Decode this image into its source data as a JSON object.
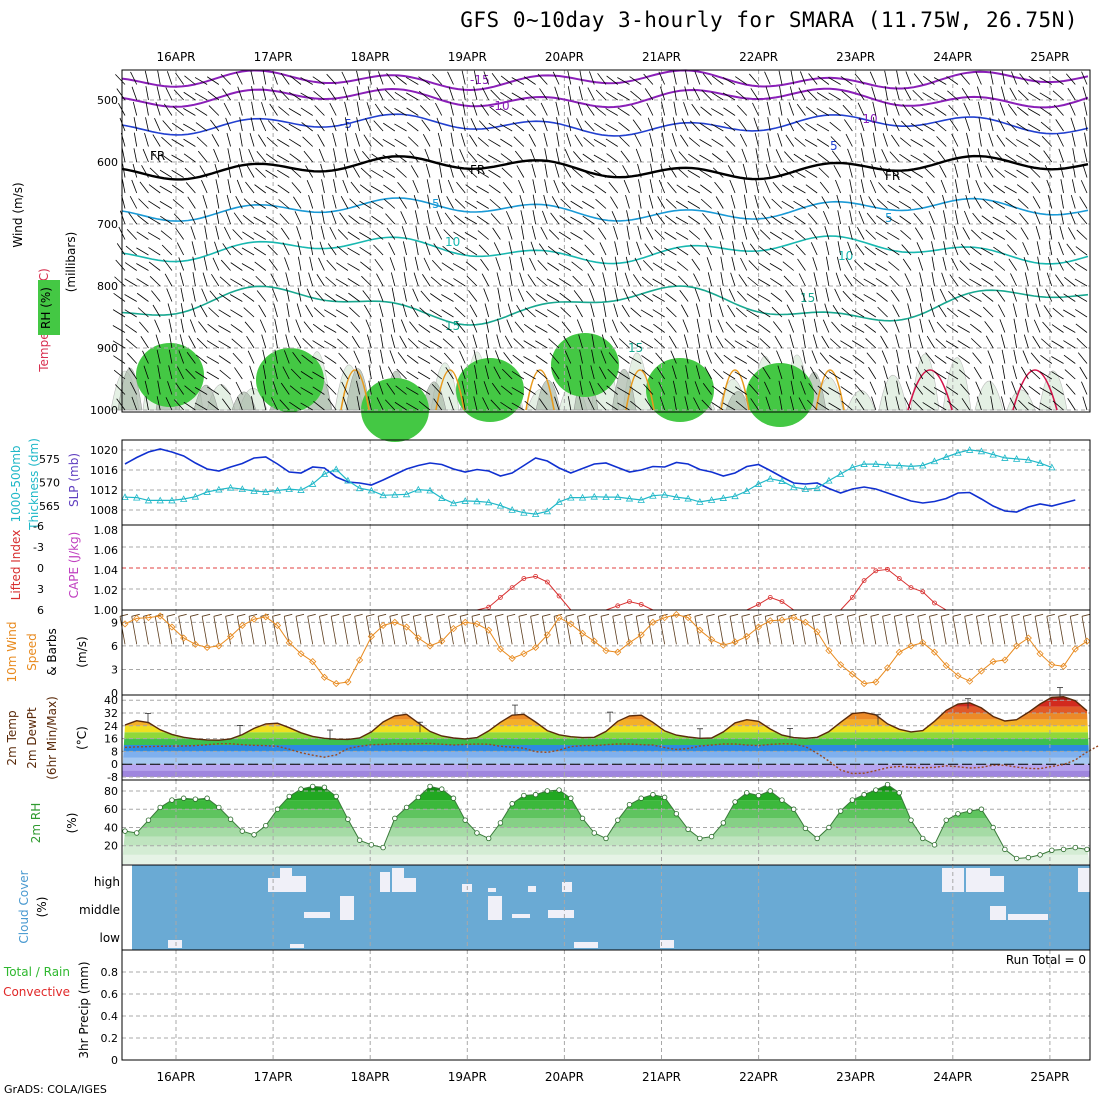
{
  "title": "GFS 0~10day 3-hourly for SMARA (11.75W, 26.75N)",
  "credit": "GrADS: COLA/IGES",
  "dates": [
    "16APR",
    "17APR",
    "18APR",
    "19APR",
    "20APR",
    "21APR",
    "22APR",
    "23APR",
    "24APR",
    "25APR"
  ],
  "chart_data": [
    {
      "type": "heatmap",
      "panel": "upper-air cross section",
      "ylabel_parts": [
        "RH (%)",
        "Temperature (°C)",
        "Wind (m/s)"
      ],
      "ylabel_unit": "(millibars)",
      "ylim": [
        1000,
        450
      ],
      "yticks": [
        500,
        600,
        700,
        800,
        900,
        1000
      ],
      "contour_labels": [
        "-15",
        "-10",
        "-5",
        "FR",
        "5",
        "10",
        "15"
      ],
      "colors": {
        "rh": "#44c844",
        "rh_light": "#e6f3e6",
        "isotherm_cold": "#8a1fb8",
        "isotherm_freezing": "#000000",
        "isotherm_cool": "#1a9ad6",
        "isotherm_warm": "#e89a1e",
        "isotherm_hot": "#d2144a"
      }
    },
    {
      "type": "line",
      "panel": "thickness-slp",
      "ylabel_left": "1000-500mb Thickness (dm)",
      "ylabel_right": "SLP (mb)",
      "yticks_left": [
        565,
        570,
        575
      ],
      "yticks_right": [
        1008,
        1012,
        1016,
        1020
      ],
      "series": [
        {
          "name": "SLP (mb)",
          "color": "#1030d0",
          "values": [
            1017.2,
            1018.5,
            1019.6,
            1020.2,
            1019.6,
            1018.8,
            1017.4,
            1016.2,
            1015.8,
            1016.6,
            1017.3,
            1018.4,
            1018.6,
            1017.2,
            1015.6,
            1015.4,
            1016.6,
            1016.4,
            1014.6,
            1013.6,
            1013.4,
            1013.0,
            1014.0,
            1015.1,
            1016.2,
            1016.9,
            1017.4,
            1017.1,
            1016.2,
            1015.6,
            1016.1,
            1015.8,
            1014.8,
            1015.4,
            1016.9,
            1018.4,
            1017.8,
            1016.4,
            1015.4,
            1016.3,
            1017.2,
            1017.4,
            1016.5,
            1015.6,
            1016.0,
            1016.7,
            1016.6,
            1017.5,
            1017.2,
            1016.1,
            1015.6,
            1014.8,
            1015.4,
            1016.7,
            1017.1,
            1015.9,
            1014.6,
            1013.4,
            1013.2,
            1013.4,
            1012.3,
            1011.4,
            1012.2,
            1012.6,
            1012.2,
            1011.4,
            1010.6,
            1009.8,
            1009.4,
            1009.7,
            1010.3,
            1011.4,
            1011.5,
            1010.2,
            1008.8,
            1007.8,
            1007.6,
            1008.6,
            1009.2,
            1008.8,
            1009.4,
            1010.0
          ]
        },
        {
          "name": "1000-500mb Thickness (dm)",
          "color": "#20b8c8",
          "values": [
            566.9,
            566.8,
            566.2,
            566.2,
            566.2,
            566.5,
            567.0,
            568.0,
            568.5,
            568.9,
            568.6,
            568.2,
            568.0,
            568.3,
            568.6,
            568.4,
            569.7,
            571.8,
            572.8,
            570.4,
            568.8,
            568.3,
            567.3,
            567.4,
            567.5,
            568.5,
            568.3,
            566.7,
            565.6,
            566.1,
            566.0,
            565.8,
            565.1,
            564.2,
            563.6,
            563.3,
            563.9,
            565.9,
            566.8,
            566.8,
            567.0,
            566.9,
            566.9,
            566.6,
            566.3,
            567.2,
            567.4,
            566.9,
            566.6,
            565.9,
            566.3,
            566.7,
            567.1,
            568.2,
            569.7,
            570.8,
            570.3,
            569.0,
            568.6,
            568.8,
            570.4,
            571.8,
            573.2,
            573.9,
            573.9,
            573.7,
            573.6,
            573.4,
            573.6,
            574.5,
            575.4,
            576.3,
            576.9,
            576.6,
            575.9,
            575.2,
            575.0,
            574.8,
            574.1,
            573.2
          ]
        }
      ]
    },
    {
      "type": "line",
      "panel": "instability",
      "ylabel_left": "Lifted Index",
      "ylabel_right": "CAPE (J/kg)",
      "yticks_left": [
        -6,
        -3,
        0,
        3,
        6
      ],
      "yticks_right": [
        1,
        1.02,
        1.04,
        1.06,
        1.08
      ],
      "series": [
        {
          "name": "Lifted Index",
          "color": "#d83030",
          "values": [
            6,
            6,
            6,
            6,
            6,
            6,
            6,
            6,
            6,
            6,
            6,
            6,
            6,
            6,
            6,
            6,
            6,
            6,
            6,
            6,
            6,
            6,
            6,
            6,
            6,
            6,
            6,
            6,
            6,
            6,
            6,
            5.6,
            4.2,
            2.8,
            1.5,
            1.2,
            2.0,
            4.0,
            6,
            6,
            6,
            6,
            5.4,
            4.8,
            5.2,
            6,
            6,
            6,
            6,
            6,
            6,
            6,
            6,
            6,
            5.2,
            4.2,
            4.8,
            6,
            6,
            6,
            6,
            6,
            4.2,
            1.8,
            0.4,
            0.2,
            1.5,
            2.8,
            3.4,
            5.0,
            6,
            6,
            6,
            6,
            6,
            6,
            6,
            6,
            6,
            6,
            6,
            6
          ]
        }
      ]
    },
    {
      "type": "line",
      "panel": "10m wind",
      "ylabel_parts": [
        "10m Wind",
        "Speed",
        "& Barbs"
      ],
      "ylabel_unit": "(m/s)",
      "yticks": [
        0,
        3,
        6,
        9
      ],
      "ylim": [
        0,
        10.5
      ],
      "series": [
        {
          "name": "Speed",
          "color": "#e88a1e",
          "values": [
            8.8,
            9.5,
            9.6,
            9.8,
            8.4,
            7.0,
            6.2,
            5.8,
            6.0,
            7.2,
            8.6,
            9.4,
            9.7,
            8.6,
            6.4,
            5.0,
            4.0,
            2.0,
            1.2,
            1.4,
            4.2,
            7.2,
            8.6,
            9.0,
            8.4,
            7.0,
            6.0,
            6.6,
            8.2,
            9.0,
            8.8,
            8.0,
            5.6,
            4.4,
            5.0,
            5.8,
            7.4,
            9.6,
            8.8,
            7.6,
            6.6,
            5.4,
            5.2,
            6.4,
            7.4,
            9.0,
            9.6,
            10.0,
            9.6,
            8.0,
            6.8,
            6.1,
            6.5,
            7.2,
            8.4,
            9.2,
            9.3,
            9.6,
            9.0,
            7.8,
            5.4,
            3.6,
            2.4,
            1.2,
            1.4,
            3.2,
            5.2,
            6.0,
            6.4,
            5.2,
            3.5,
            2.2,
            1.5,
            2.8,
            4.0,
            4.2,
            6.0,
            7.0,
            5.0,
            3.6,
            3.4,
            5.6,
            6.6,
            7.2,
            4.0,
            3.4,
            3.0,
            2.8,
            2.4,
            1.8
          ]
        }
      ]
    },
    {
      "type": "line",
      "panel": "2m temperature",
      "ylabel_parts": [
        "2m Temp",
        "2m DewPt",
        "(6hr Min/Max)"
      ],
      "ylabel_unit": "(°C)",
      "yticks": [
        -8,
        0,
        8,
        16,
        24,
        32,
        40
      ],
      "ylim": [
        -8,
        42
      ],
      "series": [
        {
          "name": "2m Temp",
          "color": "#5a2a0a",
          "values": [
            24.5,
            27.2,
            26.0,
            21.5,
            18.6,
            16.8,
            15.8,
            15.2,
            15.0,
            15.8,
            18.5,
            22.4,
            25.2,
            25.6,
            22.8,
            19.6,
            17.4,
            16.2,
            15.6,
            15.5,
            16.4,
            20.2,
            26.4,
            30.2,
            31.2,
            25.8,
            20.5,
            17.6,
            16.4,
            15.8,
            16.6,
            20.8,
            26.2,
            30.6,
            31.2,
            26.4,
            21.0,
            18.4,
            17.2,
            16.6,
            16.8,
            20.5,
            26.8,
            30.2,
            30.6,
            26.2,
            20.8,
            18.2,
            17.0,
            16.2,
            16.4,
            20.2,
            25.8,
            27.8,
            26.8,
            22.0,
            18.2,
            16.6,
            16.2,
            16.8,
            20.4,
            26.2,
            31.6,
            32.4,
            30.8,
            25.2,
            21.8,
            20.2,
            21.0,
            26.8,
            33.6,
            37.6,
            38.4,
            35.2,
            29.8,
            27.0,
            27.8,
            32.4,
            37.6,
            41.8,
            42.2,
            39.6,
            33.4,
            28.6,
            25.8,
            23.2,
            22.6,
            22.0
          ]
        },
        {
          "name": "2m DewPt",
          "color": "#9a4a20",
          "values": [
            10.5,
            10.8,
            11.0,
            11.2,
            11.3,
            11.4,
            11.6,
            12.2,
            12.8,
            12.8,
            12.2,
            11.8,
            11.6,
            11.2,
            9.4,
            7.2,
            5.6,
            4.4,
            5.8,
            9.8,
            11.2,
            12.2,
            12.4,
            12.8,
            12.6,
            12.8,
            13.0,
            12.5,
            12.0,
            12.4,
            12.6,
            12.5,
            11.2,
            10.6,
            10.0,
            7.8,
            7.4,
            8.8,
            11.0,
            11.6,
            11.6,
            12.2,
            12.6,
            12.6,
            12.2,
            12.0,
            10.4,
            9.2,
            9.8,
            11.4,
            12.0,
            12.6,
            12.6,
            12.0,
            11.6,
            12.4,
            12.8,
            12.6,
            11.0,
            6.8,
            2.0,
            -3.6,
            -5.8,
            -5.6,
            -4.0,
            -2.2,
            -1.4,
            -2.0,
            -2.2,
            -2.0,
            -1.0,
            -1.6,
            -2.4,
            -2.0,
            -0.6,
            -0.6,
            -1.8,
            -2.6,
            -2.8,
            -1.4,
            -0.2,
            2.6,
            7.6,
            11.6
          ]
        }
      ],
      "bands": [
        {
          "from": -8,
          "to": -4,
          "color": "#9f86de"
        },
        {
          "from": -4,
          "to": 0,
          "color": "#b7a4f0"
        },
        {
          "from": 0,
          "to": 4,
          "color": "#a6c8f2"
        },
        {
          "from": 4,
          "to": 8,
          "color": "#7fb0ee"
        },
        {
          "from": 8,
          "to": 12,
          "color": "#2e8ae0"
        },
        {
          "from": 12,
          "to": 16,
          "color": "#3cc050"
        },
        {
          "from": 16,
          "to": 20,
          "color": "#8fd83a"
        },
        {
          "from": 20,
          "to": 24,
          "color": "#f0e020"
        },
        {
          "from": 24,
          "to": 28,
          "color": "#f4b028"
        },
        {
          "from": 28,
          "to": 32,
          "color": "#ec8a28"
        },
        {
          "from": 32,
          "to": 36,
          "color": "#e05a28"
        },
        {
          "from": 36,
          "to": 40,
          "color": "#d22a1e"
        },
        {
          "from": 40,
          "to": 46,
          "color": "#a81814"
        }
      ]
    },
    {
      "type": "area",
      "panel": "2m RH",
      "ylabel": "2m RH",
      "ylabel_unit": "(%)",
      "yticks": [
        20,
        40,
        60,
        80
      ],
      "ylim": [
        0,
        92
      ],
      "series": [
        {
          "name": "2m RH",
          "color": "#2f9a2f",
          "values": [
            36,
            34,
            48,
            62,
            70,
            72,
            71,
            72,
            62,
            49,
            36,
            32,
            42,
            60,
            74,
            82,
            85,
            84,
            74,
            49,
            26,
            21,
            18,
            50,
            62,
            73,
            85,
            82,
            72,
            48,
            34,
            28,
            45,
            66,
            75,
            76,
            80,
            81,
            72,
            50,
            34,
            28,
            48,
            65,
            72,
            76,
            73,
            55,
            38,
            28,
            30,
            45,
            68,
            78,
            75,
            80,
            70,
            60,
            39,
            28,
            40,
            58,
            70,
            76,
            81,
            87,
            78,
            48,
            28,
            21,
            48,
            55,
            58,
            60,
            40,
            16,
            6,
            7,
            10,
            15,
            16,
            18,
            16,
            14,
            10,
            9,
            8,
            8,
            20,
            38,
            48,
            55
          ]
        }
      ]
    },
    {
      "type": "heatmap",
      "panel": "cloud cover",
      "ylabel": "Cloud Cover",
      "ylabel_unit": "(%)",
      "levels": [
        "high",
        "middle",
        "low"
      ],
      "colors": {
        "sky": "#6aaad4",
        "cloud": "#f0f0f8"
      }
    },
    {
      "type": "bar",
      "panel": "3hr precip",
      "ylabel_parts": [
        "Total / Rain",
        "Convective"
      ],
      "ylabel_unit": "3hr Precip (mm)",
      "yticks": [
        0,
        0.2,
        0.4,
        0.6,
        0.8
      ],
      "ylim": [
        0,
        1
      ],
      "run_total": "Run Total = 0",
      "series": [
        {
          "name": "Total / Rain",
          "values": []
        }
      ]
    }
  ],
  "left_labels": {
    "wind": "Wind (m/s)",
    "temperature": "Temperature (°C)",
    "rh": "RH (%)",
    "mbar": "(millibars)",
    "thickness": "1000-500mb",
    "thickness2": "Thickness (dm)",
    "slp": "SLP (mb)",
    "li": "Lifted Index",
    "cape": "CAPE (J/kg)",
    "w10": "10m Wind",
    "w10b": "Speed",
    "w10c": "& Barbs",
    "ms": "(m/s)",
    "t2a": "2m Temp",
    "t2b": "2m DewPt",
    "t2c": "(6hr Min/Max)",
    "degc": "(°C)",
    "rh2": "2m RH",
    "pct": "(%)",
    "cloud": "Cloud Cover",
    "cloudpct": "(%)",
    "high": "high",
    "middle": "middle",
    "low": "low",
    "precip1": "Total / Rain",
    "precip2": "Convective",
    "precip3": "3hr Precip (mm)",
    "runtotal": "Run Total = 0"
  }
}
